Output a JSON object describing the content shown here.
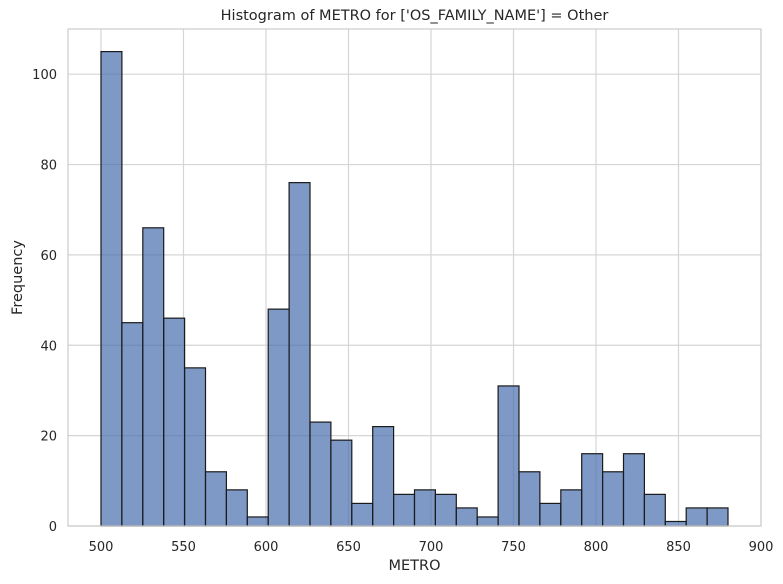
{
  "chart_data": {
    "type": "bar",
    "title": "Histogram of METRO for ['OS_FAMILY_NAME'] = Other",
    "xlabel": "METRO",
    "ylabel": "Frequency",
    "xlim": [
      480,
      900
    ],
    "ylim": [
      0,
      110
    ],
    "x_ticks": [
      500,
      550,
      600,
      650,
      700,
      750,
      800,
      850,
      900
    ],
    "y_ticks": [
      0,
      20,
      40,
      60,
      80,
      100
    ],
    "grid": true,
    "bin_start": 500,
    "bin_end": 880,
    "values": [
      105,
      45,
      66,
      46,
      35,
      12,
      8,
      2,
      48,
      76,
      23,
      19,
      5,
      22,
      7,
      8,
      7,
      4,
      2,
      31,
      12,
      5,
      8,
      16,
      12,
      16,
      7,
      1,
      4,
      4
    ],
    "bar_color": "#4c72b0",
    "bar_edge_color": "#1a1a1a",
    "grid_color": "#d5d5d5",
    "frame_color": "#cccccc"
  }
}
